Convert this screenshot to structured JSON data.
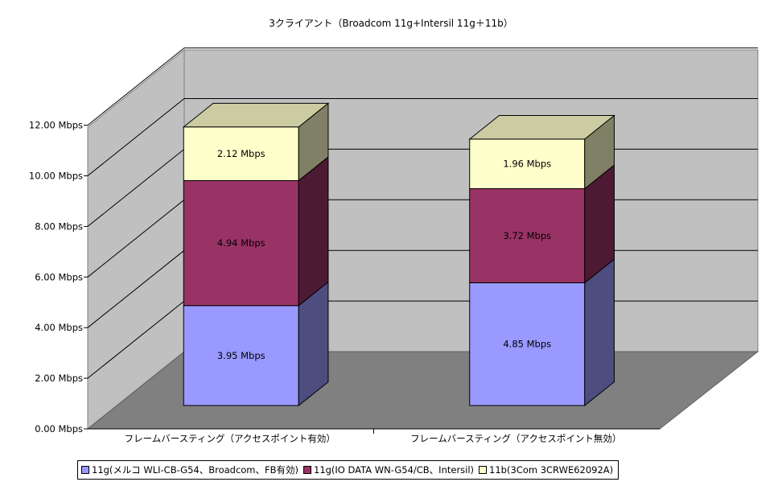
{
  "chart_data": {
    "type": "bar",
    "stacked": true,
    "three_d": true,
    "title": "3クライアント（Broadcom 11g+Intersil 11g＋11b）",
    "categories": [
      "フレームバースティング（アクセスポイント有効）",
      "フレームバースティング（アクセスポイント無効）"
    ],
    "series": [
      {
        "name": "11g(メルコ WLI-CB-G54、Broadcom、FB有効)",
        "values": [
          3.95,
          4.85
        ],
        "labels": [
          "3.95 Mbps",
          "4.85 Mbps"
        ],
        "color": "#9999ff"
      },
      {
        "name": "11g(IO DATA WN-G54/CB、Intersil)",
        "values": [
          4.94,
          3.72
        ],
        "labels": [
          "4.94 Mbps",
          "3.72 Mbps"
        ],
        "color": "#993366"
      },
      {
        "name": "11b(3Com 3CRWE62092A)",
        "values": [
          2.12,
          1.96
        ],
        "labels": [
          "2.12 Mbps",
          "1.96 Mbps"
        ],
        "color": "#ffffcc"
      }
    ],
    "ylim": [
      0,
      12
    ],
    "yticks": [
      "0.00 Mbps",
      "2.00 Mbps",
      "4.00 Mbps",
      "6.00 Mbps",
      "8.00 Mbps",
      "10.00 Mbps",
      "12.00 Mbps"
    ],
    "grid": true,
    "legend": "bottom"
  }
}
